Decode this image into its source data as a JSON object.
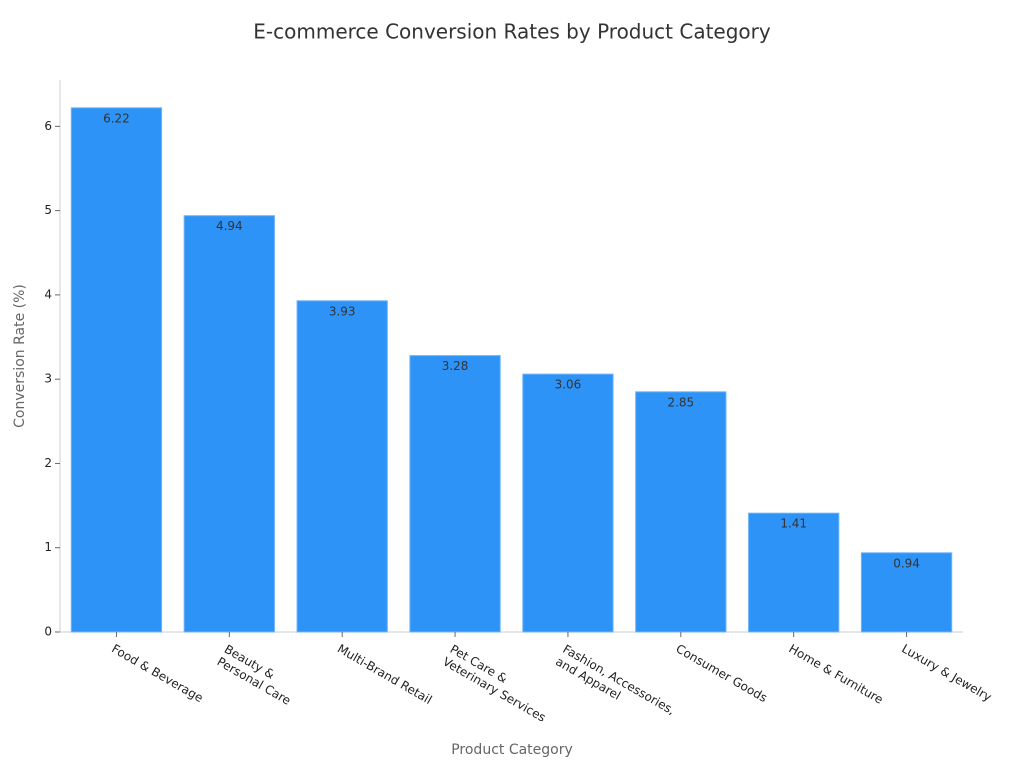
{
  "chart_data": {
    "type": "bar",
    "title": "E-commerce Conversion Rates by Product Category",
    "x_label": "Product Category",
    "y_label": "Conversion Rate (%)",
    "categories": [
      "Food & Beverage",
      "Beauty &\nPersonal Care",
      "Multi-Brand Retail",
      "Pet Care &\nVeterinary Services",
      "Fashion, Accessories,\nand Apparel",
      "Consumer Goods",
      "Home & Furniture",
      "Luxury & Jewelry"
    ],
    "values": [
      6.22,
      4.94,
      3.93,
      3.28,
      3.06,
      2.85,
      1.41,
      0.94
    ],
    "color": "#2e93f7",
    "ylim": [
      0,
      6.55
    ],
    "yticks": [
      0,
      1,
      2,
      3,
      4,
      5,
      6
    ],
    "grid": false
  }
}
